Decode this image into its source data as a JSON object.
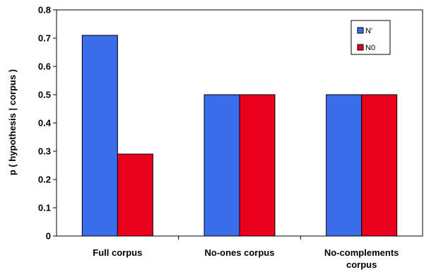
{
  "chart_data": {
    "type": "bar",
    "title": "",
    "xlabel": "",
    "ylabel": "p ( hypothesis | corpus )",
    "ylim": [
      0,
      0.8
    ],
    "yticks": [
      "0",
      "0.1",
      "0.2",
      "0.3",
      "0.4",
      "0.5",
      "0.6",
      "0.7",
      "0.8"
    ],
    "categories": [
      [
        "Full corpus"
      ],
      [
        "No-ones corpus"
      ],
      [
        "No-complements",
        "corpus"
      ]
    ],
    "series": [
      {
        "name": "N'",
        "values": [
          0.71,
          0.5,
          0.5
        ],
        "color": "#3B6DEB"
      },
      {
        "name": "N0",
        "values": [
          0.29,
          0.5,
          0.5
        ],
        "color": "#E8001C"
      }
    ],
    "grid": false,
    "legend_position": "top-right"
  }
}
